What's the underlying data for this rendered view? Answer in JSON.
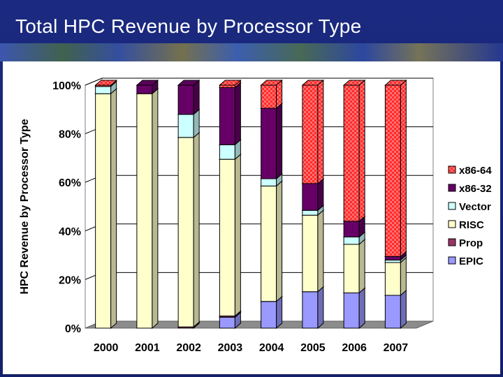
{
  "slide": {
    "title": "Total HPC Revenue by Processor Type",
    "background": "#1b2a80"
  },
  "chart_data": {
    "type": "bar",
    "stacked": true,
    "percent_stacked": true,
    "title": "",
    "xlabel": "",
    "ylabel": "HPC Revenue by Processor Type",
    "ylim": [
      0,
      100
    ],
    "yticks": [
      "0%",
      "20%",
      "40%",
      "60%",
      "80%",
      "100%"
    ],
    "grid": true,
    "legend_position": "right",
    "categories": [
      "2000",
      "2001",
      "2002",
      "2003",
      "2004",
      "2005",
      "2006",
      "2007"
    ],
    "series": [
      {
        "name": "EPIC",
        "color": "#9999ff",
        "values": [
          0,
          0,
          0,
          4.5,
          11,
          15,
          14.5,
          13.5
        ]
      },
      {
        "name": "Prop",
        "color": "#993366",
        "values": [
          0,
          0,
          0.5,
          0.5,
          0,
          0,
          0,
          0
        ]
      },
      {
        "name": "RISC",
        "color": "#ffffcc",
        "values": [
          96.5,
          96.5,
          78,
          64.5,
          47.5,
          31.5,
          20,
          13.5
        ]
      },
      {
        "name": "Vector",
        "color": "#ccffff",
        "values": [
          3,
          0,
          9.5,
          6,
          3,
          2,
          3,
          1
        ]
      },
      {
        "name": "x86-32",
        "color": "#660066",
        "values": [
          0,
          3.5,
          12,
          23.5,
          29,
          11,
          6.5,
          1.5
        ]
      },
      {
        "name": "x86-64",
        "color": "#ff3333",
        "values": [
          0.5,
          0,
          0,
          1,
          9.5,
          40.5,
          56,
          70.5
        ]
      }
    ]
  }
}
